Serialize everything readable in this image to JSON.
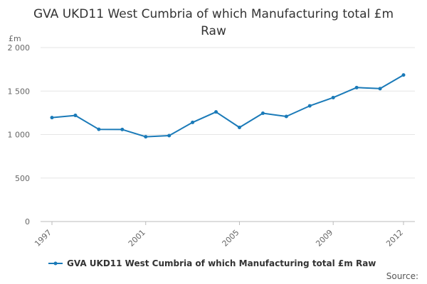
{
  "title": "GVA UKD11 West Cumbria of which Manufacturing total £m Raw",
  "source_label": "Source:",
  "chart_data": {
    "type": "line",
    "ylabel": "£m",
    "ylim": [
      0,
      2000
    ],
    "yticks": [
      0,
      500,
      1000,
      1500,
      2000
    ],
    "ytick_labels": [
      "0",
      "500",
      "1 000",
      "1 500",
      "2 000"
    ],
    "x": [
      1997,
      1998,
      1999,
      2000,
      2001,
      2002,
      2003,
      2004,
      2005,
      2006,
      2007,
      2008,
      2009,
      2010,
      2011,
      2012
    ],
    "xtick_labels": [
      "1997",
      "2001",
      "2005",
      "2009",
      "2012"
    ],
    "grid": true,
    "legend": "bottom",
    "series": [
      {
        "name": "GVA UKD11 West Cumbria of which Manufacturing total £m Raw",
        "color": "#1a7ab8",
        "values": [
          1195,
          1220,
          1060,
          1058,
          975,
          988,
          1140,
          1260,
          1082,
          1245,
          1208,
          1330,
          1425,
          1540,
          1528,
          1685
        ]
      }
    ]
  }
}
